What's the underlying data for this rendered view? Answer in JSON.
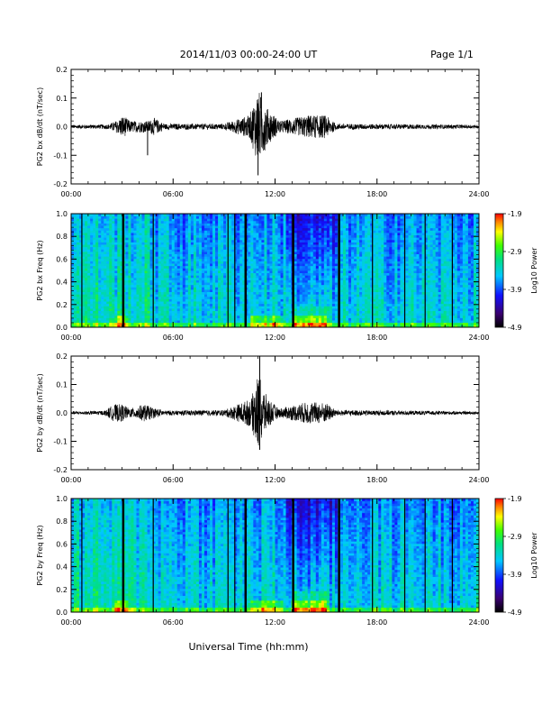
{
  "header": {
    "title": "2014/11/03  00:00-24:00 UT",
    "page": "Page 1/1"
  },
  "footer": {
    "xlabel": "Universal Time (hh:mm)"
  },
  "chart_data": [
    {
      "type": "line",
      "ylabel": "PG2 bx dB/dt (nT/sec)",
      "x_ticks": [
        "00:00",
        "06:00",
        "12:00",
        "18:00",
        "24:00"
      ],
      "y_ticks": [
        "0.2",
        "0.1",
        "0.0",
        "-0.1",
        "-0.2"
      ],
      "xlim_hours": [
        0,
        24
      ],
      "ylim": [
        -0.2,
        0.2
      ],
      "activity_envelope": [
        {
          "t": 0.0,
          "amp": 0.006
        },
        {
          "t": 2.2,
          "amp": 0.008
        },
        {
          "t": 2.8,
          "amp": 0.025
        },
        {
          "t": 3.0,
          "amp": 0.04
        },
        {
          "t": 3.5,
          "amp": 0.02
        },
        {
          "t": 4.5,
          "amp": 0.02
        },
        {
          "t": 4.9,
          "amp": 0.03
        },
        {
          "t": 5.5,
          "amp": 0.01
        },
        {
          "t": 9.0,
          "amp": 0.01
        },
        {
          "t": 10.5,
          "amp": 0.04
        },
        {
          "t": 11.0,
          "amp": 0.13
        },
        {
          "t": 11.6,
          "amp": 0.06
        },
        {
          "t": 12.3,
          "amp": 0.02
        },
        {
          "t": 14.0,
          "amp": 0.04
        },
        {
          "t": 15.0,
          "amp": 0.04
        },
        {
          "t": 15.6,
          "amp": 0.01
        },
        {
          "t": 24.0,
          "amp": 0.006
        }
      ],
      "spikes": [
        {
          "t": 4.5,
          "value": -0.1
        },
        {
          "t": 11.0,
          "value": -0.17
        },
        {
          "t": 11.2,
          "value": 0.12
        }
      ]
    },
    {
      "type": "heatmap",
      "ylabel": "PG2 bx Freq (Hz)",
      "x_ticks": [
        "00:00",
        "06:00",
        "12:00",
        "18:00",
        "24:00"
      ],
      "y_ticks": [
        "1.0",
        "0.8",
        "0.6",
        "0.4",
        "0.2",
        "0.0"
      ],
      "xlim_hours": [
        0,
        24
      ],
      "ylim": [
        0.0,
        1.0
      ],
      "colorbar": {
        "label": "Log10 Power",
        "ticks": [
          "-1.9",
          "-2.9",
          "-3.9",
          "-4.9"
        ],
        "range": [
          -4.9,
          -1.9
        ]
      },
      "data_gaps_hours": [
        0.6,
        3.0,
        4.8,
        9.2,
        9.6,
        10.2,
        13.0,
        15.7,
        17.7,
        19.6,
        20.8,
        22.4
      ]
    },
    {
      "type": "line",
      "ylabel": "PG2 by dB/dt (nT/sec)",
      "x_ticks": [
        "00:00",
        "06:00",
        "12:00",
        "18:00",
        "24:00"
      ],
      "y_ticks": [
        "0.2",
        "0.1",
        "0.0",
        "-0.1",
        "-0.2"
      ],
      "xlim_hours": [
        0,
        24
      ],
      "ylim": [
        -0.2,
        0.2
      ],
      "activity_envelope": [
        {
          "t": 0.0,
          "amp": 0.005
        },
        {
          "t": 2.0,
          "amp": 0.008
        },
        {
          "t": 2.5,
          "amp": 0.03
        },
        {
          "t": 3.0,
          "amp": 0.03
        },
        {
          "t": 3.5,
          "amp": 0.015
        },
        {
          "t": 4.3,
          "amp": 0.03
        },
        {
          "t": 4.8,
          "amp": 0.02
        },
        {
          "t": 5.5,
          "amp": 0.008
        },
        {
          "t": 9.0,
          "amp": 0.01
        },
        {
          "t": 10.6,
          "amp": 0.05
        },
        {
          "t": 11.0,
          "amp": 0.14
        },
        {
          "t": 11.5,
          "amp": 0.06
        },
        {
          "t": 12.2,
          "amp": 0.015
        },
        {
          "t": 14.0,
          "amp": 0.04
        },
        {
          "t": 15.0,
          "amp": 0.035
        },
        {
          "t": 15.6,
          "amp": 0.01
        },
        {
          "t": 24.0,
          "amp": 0.005
        }
      ],
      "spikes": [
        {
          "t": 11.1,
          "value": 0.2
        },
        {
          "t": 11.1,
          "value": -0.13
        }
      ]
    },
    {
      "type": "heatmap",
      "ylabel": "PG2 by Freq (Hz)",
      "x_ticks": [
        "00:00",
        "06:00",
        "12:00",
        "18:00",
        "24:00"
      ],
      "y_ticks": [
        "1.0",
        "0.8",
        "0.6",
        "0.4",
        "0.2",
        "0.0"
      ],
      "xlim_hours": [
        0,
        24
      ],
      "ylim": [
        0.0,
        1.0
      ],
      "colorbar": {
        "label": "Log10 Power",
        "ticks": [
          "-1.9",
          "-2.9",
          "-3.9",
          "-4.9"
        ],
        "range": [
          -4.9,
          -1.9
        ]
      },
      "data_gaps_hours": [
        0.6,
        3.0,
        4.8,
        9.2,
        9.6,
        10.2,
        13.0,
        15.7,
        17.7,
        19.6,
        20.8,
        22.4
      ]
    }
  ]
}
